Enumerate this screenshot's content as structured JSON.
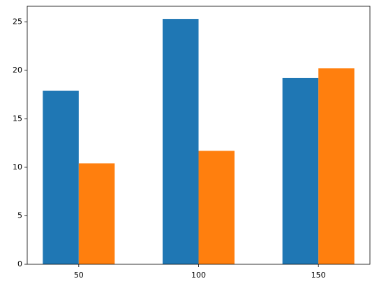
{
  "chart_data": {
    "type": "bar",
    "x": [
      50,
      100,
      150
    ],
    "series": [
      {
        "color": "#1f77b4",
        "values": [
          17.9,
          25.3,
          19.2
        ]
      },
      {
        "color": "#ff7f0e",
        "values": [
          10.4,
          11.7,
          20.2
        ]
      }
    ],
    "xlim": [
      28.5,
      171.5
    ],
    "xticks": [
      50,
      100,
      150
    ],
    "ylim": [
      0,
      26.6
    ],
    "yticks": [
      0,
      5,
      10,
      15,
      20,
      25
    ]
  }
}
